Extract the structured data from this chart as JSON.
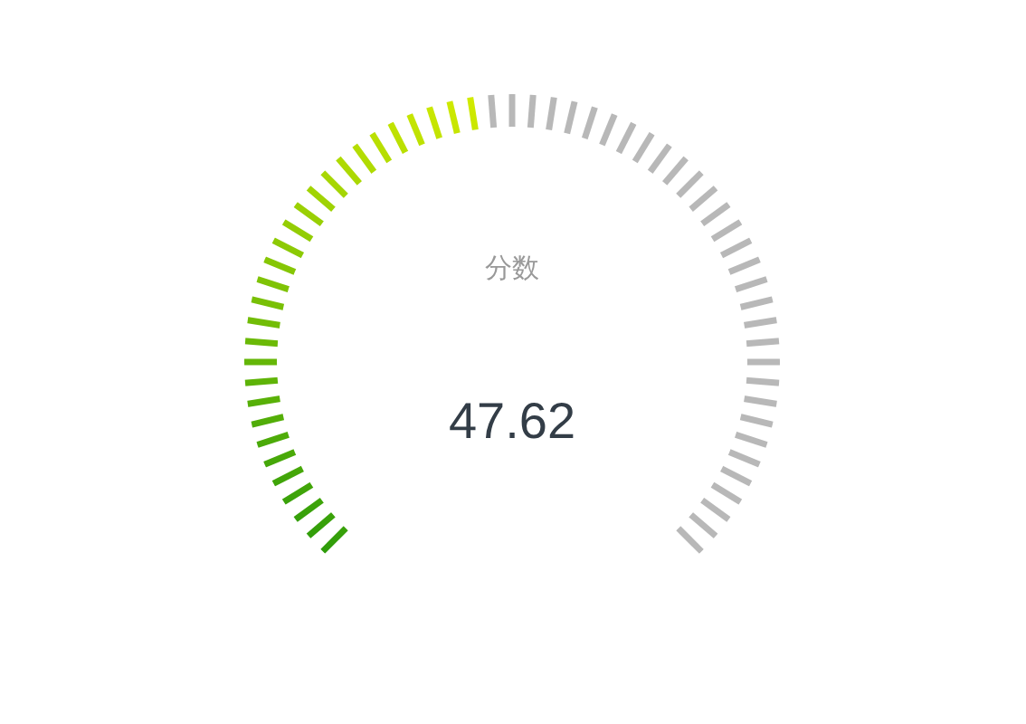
{
  "chart_data": {
    "type": "donut",
    "title": "分数",
    "categories": [
      null,
      null
    ],
    "values": [
      47.62,
      52.38
    ],
    "annotations": [
      "47.62"
    ],
    "colors": [
      "#2e9c0a",
      "#b8b8b8"
    ]
  }
}
